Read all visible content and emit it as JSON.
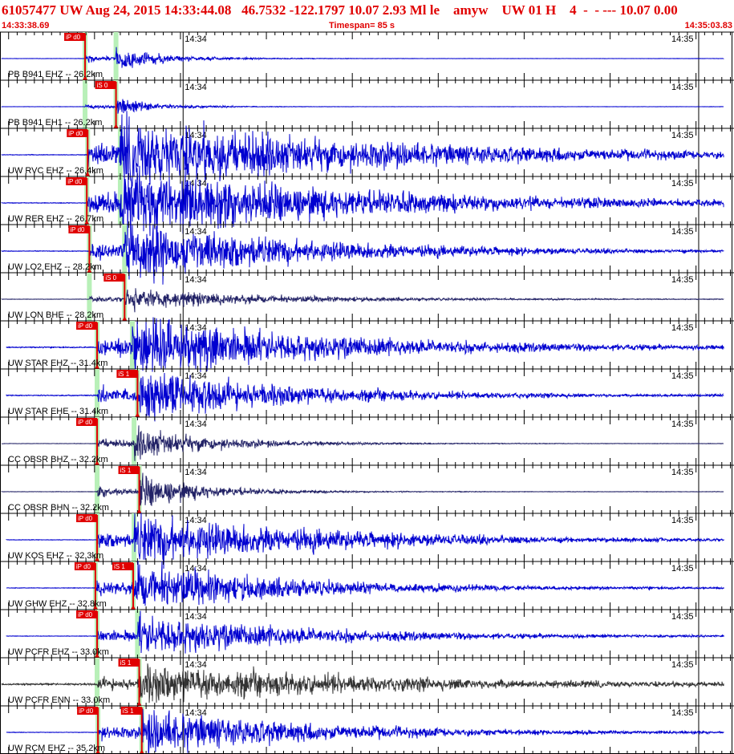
{
  "header": {
    "title": "61057477 UW Aug 24, 2015 14:33:44.08   46.7532 -122.1797 10.07 2.93 Ml le    amyw    UW 01 H    4  -  - --- 10.07 0.00",
    "start_time": "14:33:38.69",
    "timespan": "Timespan=  85 s",
    "end_time": "14:35:03.83"
  },
  "colors": {
    "header_red": "#e00000",
    "trace_blue": "#0000d0",
    "trace_dark": "#222266",
    "trace_gray": "#333333",
    "pick_red": "#e00000",
    "pick_green": "#b8f0b8",
    "grid": "#000000"
  },
  "chart_data": {
    "type": "line",
    "title": "",
    "x_unit": "seconds after 14:33:38.69",
    "xlim": [
      0,
      85.14
    ],
    "minute_labels": [
      {
        "label": "14:34",
        "t": 21.31
      },
      {
        "label": "14:35",
        "t": 81.31
      }
    ],
    "tick_interval_s": 1,
    "major_tick_interval_s": 10,
    "traces": [
      {
        "label": "PB B941 EHZ -- 26.2km",
        "color": "blue",
        "picks": [
          {
            "label": "iP d0",
            "t": 9.9
          }
        ],
        "p_t": 9.9,
        "s_t": 13.5,
        "amp": 0.35,
        "decay": 6,
        "noise": 0.01
      },
      {
        "label": "PB B941 EH1 -- 26.2km",
        "color": "blue",
        "picks": [
          {
            "label": "iS 0",
            "t": 13.5
          }
        ],
        "p_t": 9.9,
        "s_t": 13.5,
        "amp": 0.3,
        "decay": 5,
        "noise": 0.01
      },
      {
        "label": "UW RVC EHZ -- 26.4km",
        "color": "blue",
        "picks": [
          {
            "label": "iP d0",
            "t": 10.2
          }
        ],
        "p_t": 10.2,
        "s_t": 14.0,
        "amp": 1.0,
        "decay": 32,
        "noise": 0.01
      },
      {
        "label": "UW RER EHZ -- 26.7km",
        "color": "blue",
        "picks": [
          {
            "label": "iP d0",
            "t": 10.1
          }
        ],
        "p_t": 10.1,
        "s_t": 14.0,
        "amp": 1.0,
        "decay": 30,
        "noise": 0.01
      },
      {
        "label": "UW LO2 EHZ -- 28.2km",
        "color": "blue",
        "picks": [
          {
            "label": "iP d0",
            "t": 10.4
          }
        ],
        "p_t": 10.4,
        "s_t": 14.5,
        "amp": 0.9,
        "decay": 22,
        "noise": 0.01
      },
      {
        "label": "UW LON BHE -- 28.2km",
        "color": "dark",
        "picks": [
          {
            "label": "iS 0",
            "t": 14.5
          }
        ],
        "p_t": 10.4,
        "s_t": 14.5,
        "amp": 0.3,
        "decay": 18,
        "noise": 0.015
      },
      {
        "label": "UW STAR EHZ -- 31.4km",
        "color": "blue",
        "picks": [
          {
            "label": "iP d0",
            "t": 11.3
          }
        ],
        "p_t": 11.3,
        "s_t": 15.4,
        "amp": 0.85,
        "decay": 25,
        "noise": 0.02
      },
      {
        "label": "UW STAR EHE -- 31.4km",
        "color": "blue",
        "picks": [
          {
            "label": "iS 1",
            "t": 16.0
          }
        ],
        "p_t": 11.3,
        "s_t": 16.0,
        "amp": 0.8,
        "decay": 18,
        "noise": 0.02
      },
      {
        "label": "CC OBSR BHZ -- 32.2km",
        "color": "dark",
        "picks": [
          {
            "label": "iP d0",
            "t": 11.3
          }
        ],
        "p_t": 11.3,
        "s_t": 15.6,
        "amp": 0.5,
        "decay": 10,
        "noise": 0.01
      },
      {
        "label": "CC OBSR BHN -- 32.2km",
        "color": "dark",
        "picks": [
          {
            "label": "iS 1",
            "t": 16.2
          }
        ],
        "p_t": 11.3,
        "s_t": 16.2,
        "amp": 0.55,
        "decay": 8,
        "noise": 0.01
      },
      {
        "label": "UW KOS EHZ -- 32.3km",
        "color": "blue",
        "picks": [
          {
            "label": "iP d0",
            "t": 11.3
          }
        ],
        "p_t": 11.3,
        "s_t": 15.6,
        "amp": 0.75,
        "decay": 24,
        "noise": 0.01
      },
      {
        "label": "UW GHW EHZ -- 32.8km",
        "color": "blue",
        "picks": [
          {
            "label": "iP d0",
            "t": 11.1
          },
          {
            "label": "iS 1",
            "t": 15.5
          }
        ],
        "p_t": 11.1,
        "s_t": 15.5,
        "amp": 0.7,
        "decay": 20,
        "noise": 0.01
      },
      {
        "label": "UW PCFR EHZ -- 33.0km",
        "color": "blue",
        "picks": [
          {
            "label": "iP d0",
            "t": 11.3
          }
        ],
        "p_t": 11.3,
        "s_t": 16.0,
        "amp": 0.6,
        "decay": 22,
        "noise": 0.01
      },
      {
        "label": "UW PCFR ENN -- 33.0km",
        "color": "gray",
        "picks": [
          {
            "label": "iS 1",
            "t": 16.2
          }
        ],
        "p_t": 11.3,
        "s_t": 16.2,
        "amp": 0.55,
        "decay": 28,
        "noise": 0.05
      },
      {
        "label": "UW RCM EHZ -- 35.2km",
        "color": "blue",
        "picks": [
          {
            "label": "iP d0",
            "t": 11.4
          },
          {
            "label": "iS 1",
            "t": 16.5
          }
        ],
        "p_t": 11.4,
        "s_t": 16.5,
        "amp": 0.65,
        "decay": 22,
        "noise": 0.01
      }
    ]
  }
}
